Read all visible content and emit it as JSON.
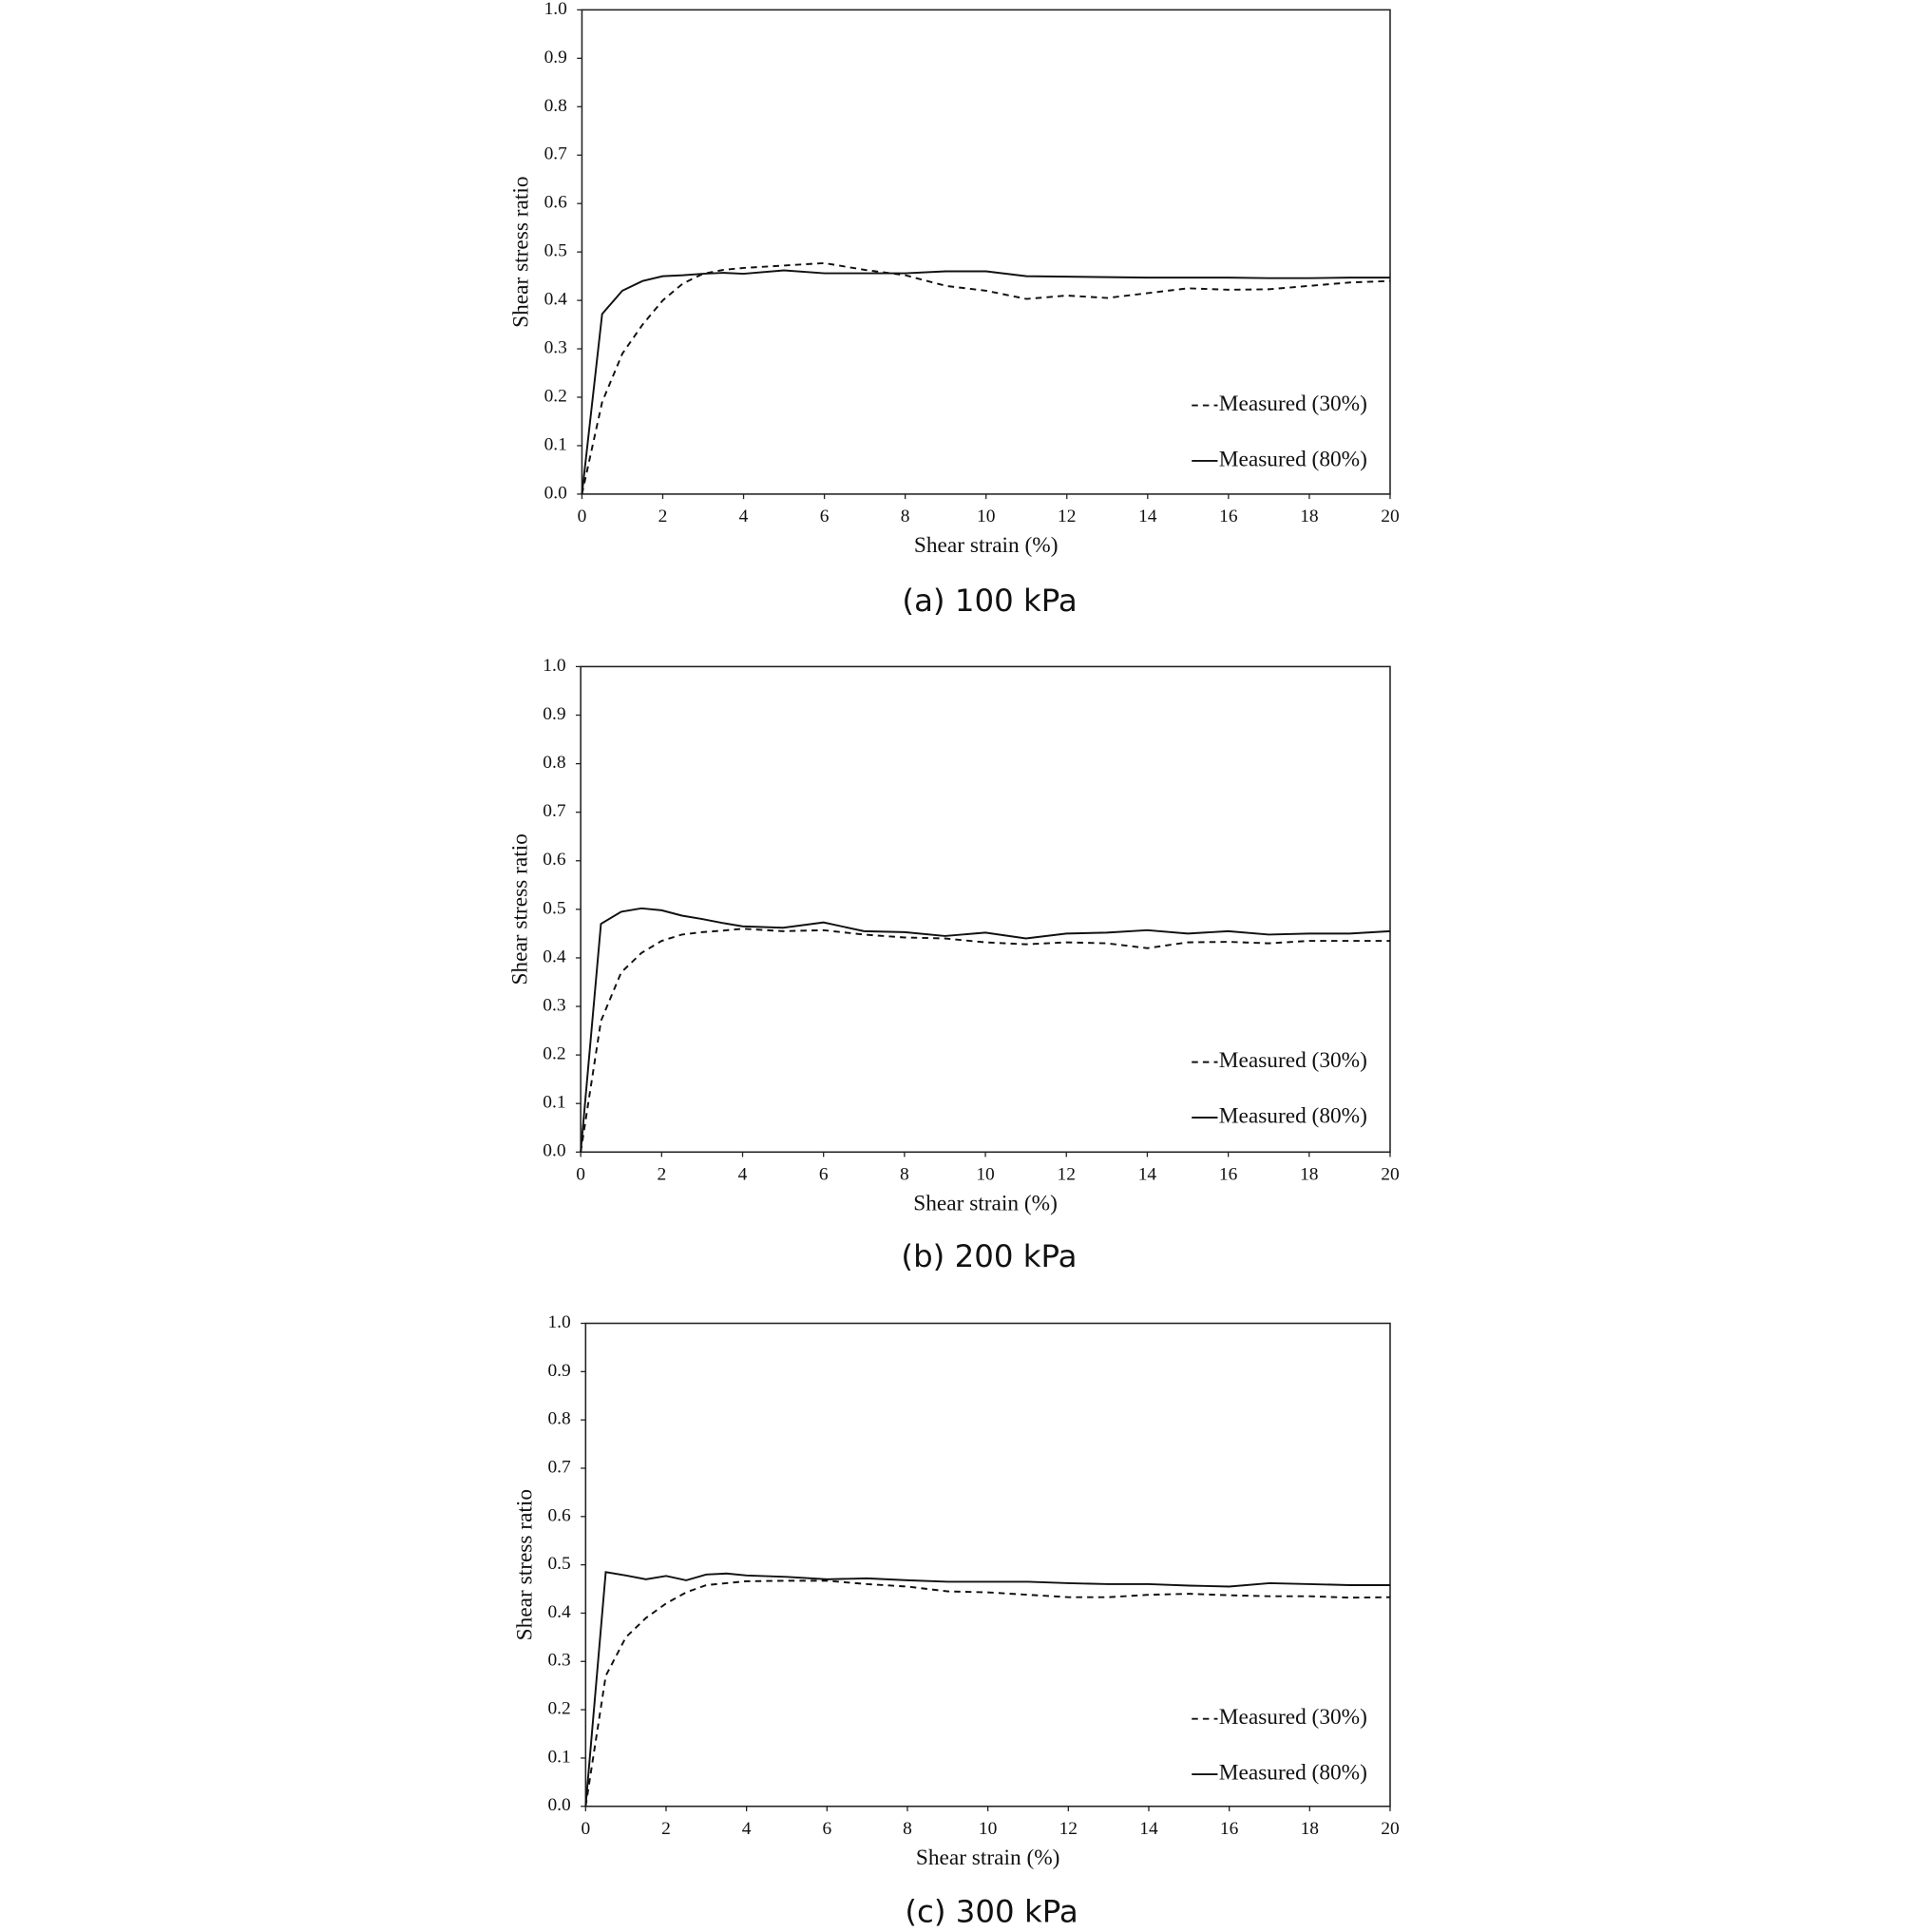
{
  "chart_data": [
    {
      "type": "line",
      "caption": "(a) 100 kPa",
      "xlabel": "Shear strain (%)",
      "ylabel": "Shear stress ratio",
      "x": [
        0,
        0.5,
        1,
        1.5,
        2,
        2.5,
        3,
        3.5,
        4,
        5,
        6,
        7,
        8,
        9,
        10,
        11,
        12,
        13,
        14,
        15,
        16,
        17,
        18,
        19,
        20
      ],
      "xlim": [
        0,
        20
      ],
      "xticks": [
        0,
        2,
        4,
        6,
        8,
        10,
        12,
        14,
        16,
        18,
        20
      ],
      "ylim": [
        0,
        1
      ],
      "yticks": [
        {
          "value": 0,
          "label": "0.0"
        },
        0.1,
        0.2,
        0.3,
        0.4,
        0.5,
        0.6,
        0.7,
        0.8,
        0.9,
        {
          "value": 1,
          "label": "1.0"
        }
      ],
      "legend": "lower right",
      "series": [
        {
          "name": "Measured (30%)",
          "color": "#111111",
          "line_style": "dashed",
          "values": [
            0,
            0.19,
            0.29,
            0.35,
            0.4,
            0.435,
            0.455,
            0.463,
            0.467,
            0.472,
            0.477,
            0.463,
            0.452,
            0.43,
            0.42,
            0.403,
            0.41,
            0.405,
            0.415,
            0.425,
            0.422,
            0.423,
            0.43,
            0.437,
            0.44
          ]
        },
        {
          "name": "Measured (80%)",
          "color": "#111111",
          "line_style": "solid",
          "values": [
            0,
            0.372,
            0.42,
            0.44,
            0.45,
            0.452,
            0.455,
            0.457,
            0.455,
            0.462,
            0.456,
            0.456,
            0.456,
            0.46,
            0.46,
            0.45,
            0.449,
            0.448,
            0.447,
            0.447,
            0.447,
            0.446,
            0.446,
            0.447,
            0.447
          ]
        }
      ]
    },
    {
      "type": "line",
      "caption": "(b) 200 kPa",
      "xlabel": "Shear strain (%)",
      "ylabel": "Shear stress ratio",
      "x": [
        0,
        0.5,
        1,
        1.5,
        2,
        2.5,
        3,
        3.5,
        4,
        5,
        6,
        7,
        8,
        9,
        10,
        11,
        12,
        13,
        14,
        15,
        16,
        17,
        18,
        19,
        20
      ],
      "xlim": [
        0,
        20
      ],
      "xticks": [
        0,
        2,
        4,
        6,
        8,
        10,
        12,
        14,
        16,
        18,
        20
      ],
      "ylim": [
        0,
        1
      ],
      "yticks": [
        {
          "value": 0,
          "label": "0.0"
        },
        0.1,
        0.2,
        0.3,
        0.4,
        0.5,
        0.6,
        0.7,
        0.8,
        0.9,
        {
          "value": 1,
          "label": "1.0"
        }
      ],
      "legend": "lower right",
      "series": [
        {
          "name": "Measured (30%)",
          "color": "#111111",
          "line_style": "dashed",
          "values": [
            0,
            0.27,
            0.37,
            0.41,
            0.435,
            0.448,
            0.453,
            0.456,
            0.46,
            0.455,
            0.457,
            0.448,
            0.442,
            0.44,
            0.432,
            0.428,
            0.432,
            0.43,
            0.42,
            0.432,
            0.433,
            0.43,
            0.435,
            0.435,
            0.435
          ]
        },
        {
          "name": "Measured (80%)",
          "color": "#111111",
          "line_style": "solid",
          "values": [
            0,
            0.47,
            0.495,
            0.502,
            0.498,
            0.487,
            0.48,
            0.472,
            0.465,
            0.462,
            0.473,
            0.455,
            0.453,
            0.445,
            0.452,
            0.44,
            0.45,
            0.452,
            0.457,
            0.45,
            0.455,
            0.448,
            0.45,
            0.45,
            0.455
          ]
        }
      ]
    },
    {
      "type": "line",
      "caption": "(c) 300 kPa",
      "xlabel": "Shear strain (%)",
      "ylabel": "Shear stress ratio",
      "x": [
        0,
        0.5,
        1,
        1.5,
        2,
        2.5,
        3,
        3.5,
        4,
        5,
        6,
        7,
        8,
        9,
        10,
        11,
        12,
        13,
        14,
        15,
        16,
        17,
        18,
        19,
        20
      ],
      "xlim": [
        0,
        20
      ],
      "xticks": [
        0,
        2,
        4,
        6,
        8,
        10,
        12,
        14,
        16,
        18,
        20
      ],
      "ylim": [
        0,
        1
      ],
      "yticks": [
        {
          "value": 0,
          "label": "0.0"
        },
        0.1,
        0.2,
        0.3,
        0.4,
        0.5,
        0.6,
        0.7,
        0.8,
        0.9,
        {
          "value": 1,
          "label": "1.0"
        }
      ],
      "legend": "lower right",
      "series": [
        {
          "name": "Measured (30%)",
          "color": "#111111",
          "line_style": "dashed",
          "values": [
            0,
            0.27,
            0.35,
            0.39,
            0.42,
            0.443,
            0.458,
            0.462,
            0.466,
            0.467,
            0.467,
            0.46,
            0.455,
            0.445,
            0.443,
            0.438,
            0.433,
            0.433,
            0.438,
            0.44,
            0.437,
            0.435,
            0.435,
            0.432,
            0.433
          ]
        },
        {
          "name": "Measured (80%)",
          "color": "#111111",
          "line_style": "solid",
          "values": [
            0,
            0.485,
            0.478,
            0.47,
            0.477,
            0.468,
            0.48,
            0.482,
            0.478,
            0.475,
            0.47,
            0.472,
            0.468,
            0.465,
            0.465,
            0.465,
            0.462,
            0.46,
            0.46,
            0.457,
            0.455,
            0.462,
            0.46,
            0.458,
            0.458
          ]
        }
      ]
    }
  ]
}
